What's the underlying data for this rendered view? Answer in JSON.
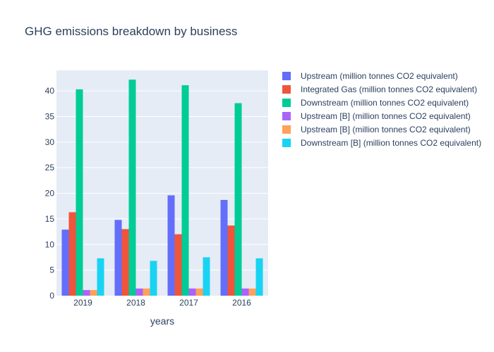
{
  "chart_data": {
    "type": "bar",
    "title": "GHG emissions breakdown by business",
    "xlabel": "years",
    "ylabel": "",
    "categories": [
      "2019",
      "2018",
      "2017",
      "2016"
    ],
    "ylim": [
      0,
      44
    ],
    "yticks": [
      0,
      5,
      10,
      15,
      20,
      25,
      30,
      35,
      40
    ],
    "grid": true,
    "legend_position": "top-right",
    "series": [
      {
        "name": "Upstream (million tonnes CO2 equivalent)",
        "color": "#636efa",
        "values": [
          12.9,
          14.8,
          19.6,
          18.7
        ]
      },
      {
        "name": "Integrated Gas (million tonnes CO2 equivalent)",
        "color": "#ef553b",
        "values": [
          16.3,
          13.0,
          12.0,
          13.7
        ]
      },
      {
        "name": "Downstream (million tonnes CO2 equivalent)",
        "color": "#00cc96",
        "values": [
          40.3,
          42.2,
          41.1,
          37.6
        ]
      },
      {
        "name": "Upstream [B] (million tonnes CO2 equivalent)",
        "color": "#ab63fa",
        "values": [
          1.1,
          1.4,
          1.4,
          1.4
        ]
      },
      {
        "name": "Upstream [B] (million tonnes CO2 equivalent)",
        "color": "#ffa15a",
        "values": [
          1.1,
          1.4,
          1.4,
          1.4
        ]
      },
      {
        "name": "Downstream [B] (million tonnes CO2 equivalent)",
        "color": "#19d3f3",
        "values": [
          7.3,
          6.8,
          7.5,
          7.3
        ]
      }
    ]
  }
}
